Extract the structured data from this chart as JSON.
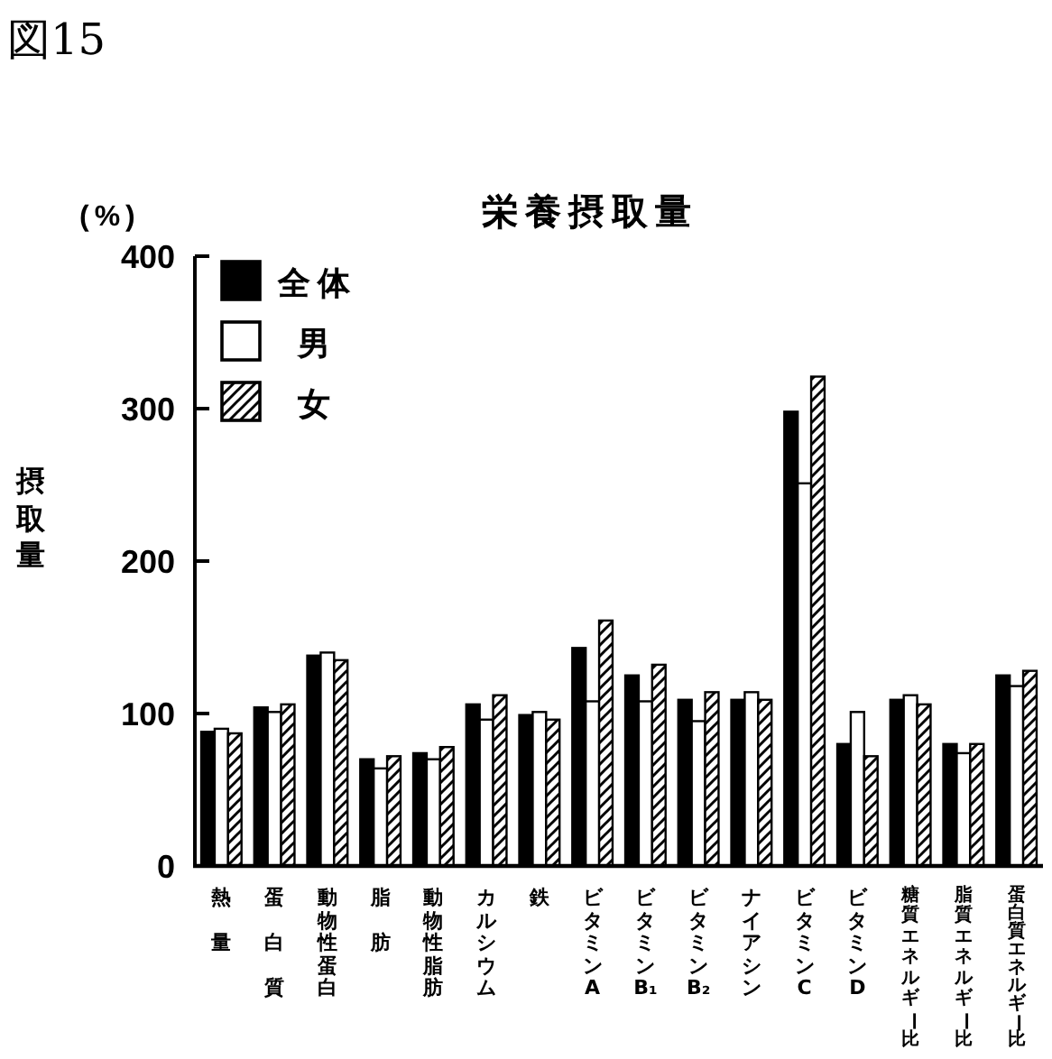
{
  "chart_data": {
    "type": "bar",
    "title": "栄養摂取量",
    "ylabel": "摂取量",
    "annotations": [
      "図15",
      "(%)"
    ],
    "categories": [
      "熱量",
      "蛋白質",
      "動物性蛋白",
      "脂肪",
      "動物性脂肪",
      "カルシウム",
      "鉄",
      "ビタミンA",
      "ビタミンB₁",
      "ビタミンB₂",
      "ナイアシン",
      "ビタミンC",
      "ビタミンD",
      "糖質エネルギー比",
      "脂質エネルギー比",
      "蛋白質エネルギー比"
    ],
    "series": [
      {
        "name": "全体",
        "color": "#000000",
        "values": [
          88,
          104,
          138,
          70,
          74,
          106,
          99,
          143,
          125,
          109,
          109,
          298,
          80,
          109,
          80,
          125
        ]
      },
      {
        "name": "男",
        "color": "#ffffff",
        "values": [
          90,
          101,
          140,
          64,
          70,
          96,
          101,
          108,
          108,
          95,
          114,
          251,
          101,
          112,
          74,
          118
        ]
      },
      {
        "name": "女",
        "color": "#000000",
        "values": [
          87,
          106,
          135,
          72,
          78,
          112,
          96,
          161,
          132,
          114,
          109,
          321,
          72,
          106,
          80,
          128
        ]
      }
    ],
    "ylim": [
      0,
      400
    ],
    "yticks": [
      0,
      100,
      200,
      300,
      400
    ],
    "legend": "top left"
  }
}
